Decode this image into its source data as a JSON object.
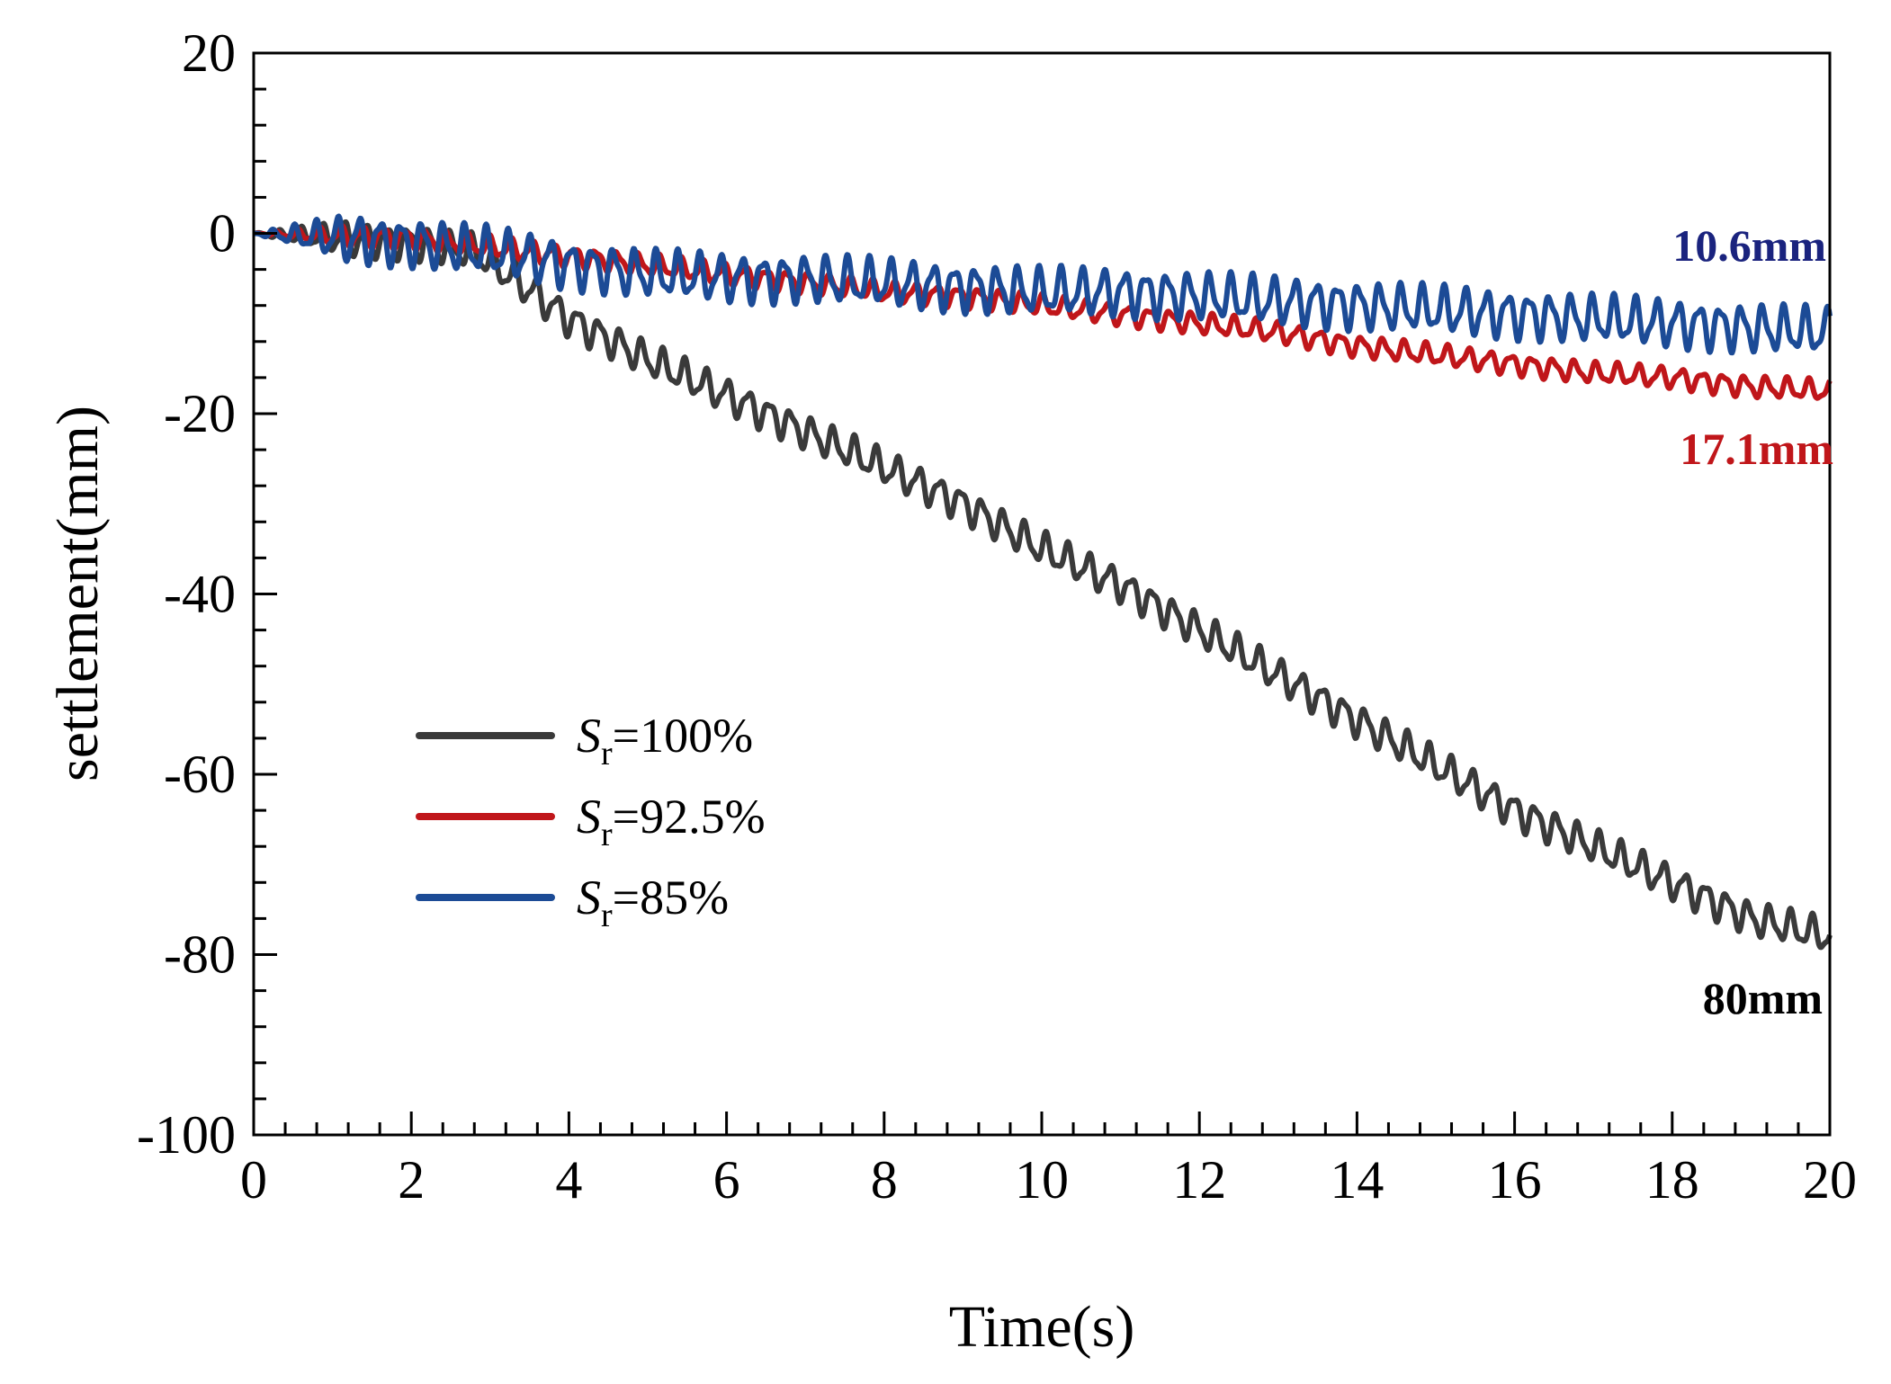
{
  "chart_data": {
    "type": "line",
    "xlabel": "Time(s)",
    "ylabel": "settlement(mm)",
    "xlim": [
      0,
      20
    ],
    "ylim": [
      -100,
      20
    ],
    "xticks": [
      0,
      2,
      4,
      6,
      8,
      10,
      12,
      14,
      16,
      18,
      20
    ],
    "yticks": [
      20,
      0,
      -20,
      -40,
      -60,
      -80,
      -100
    ],
    "xtick_labels": [
      "0",
      "2",
      "4",
      "6",
      "8",
      "10",
      "12",
      "14",
      "16",
      "18",
      "20"
    ],
    "ytick_labels": [
      "20",
      "0",
      "-20",
      "-40",
      "-60",
      "-80",
      "-100"
    ],
    "grid": false,
    "legend_position": "lower-left",
    "series": [
      {
        "name": "Sr=100%",
        "legend": {
          "symbol": "S",
          "subscript": "r",
          "rest": "=100%"
        },
        "color": "#3a3a3a",
        "oscillation_amplitude": 1.6,
        "oscillation_period": 0.27,
        "points": [
          [
            0,
            0
          ],
          [
            1,
            -0.5
          ],
          [
            2,
            -1
          ],
          [
            2.8,
            -2
          ],
          [
            3.3,
            -5
          ],
          [
            4,
            -9.5
          ],
          [
            5,
            -14
          ],
          [
            6,
            -18
          ],
          [
            7,
            -22
          ],
          [
            8,
            -26
          ],
          [
            9,
            -30
          ],
          [
            10,
            -35
          ],
          [
            11,
            -39
          ],
          [
            12,
            -44
          ],
          [
            13,
            -49
          ],
          [
            14,
            -54
          ],
          [
            15,
            -59
          ],
          [
            16,
            -64
          ],
          [
            17,
            -68
          ],
          [
            18,
            -72
          ],
          [
            19,
            -76
          ],
          [
            20,
            -78
          ]
        ]
      },
      {
        "name": "Sr=92.5%",
        "legend": {
          "symbol": "S",
          "subscript": "r",
          "rest": "=92.5%"
        },
        "color": "#c0161a",
        "oscillation_amplitude": 1.0,
        "oscillation_period": 0.27,
        "points": [
          [
            0,
            0
          ],
          [
            2,
            -0.5
          ],
          [
            3,
            -1.5
          ],
          [
            4,
            -2.5
          ],
          [
            5,
            -3.5
          ],
          [
            6,
            -4.5
          ],
          [
            7,
            -5.5
          ],
          [
            8,
            -6.5
          ],
          [
            9,
            -7
          ],
          [
            10,
            -8
          ],
          [
            11,
            -9
          ],
          [
            12,
            -10
          ],
          [
            13,
            -11
          ],
          [
            14,
            -12.5
          ],
          [
            15,
            -13.5
          ],
          [
            16,
            -14.5
          ],
          [
            17,
            -15.5
          ],
          [
            18,
            -16
          ],
          [
            19,
            -17
          ],
          [
            20,
            -17.5
          ]
        ]
      },
      {
        "name": "Sr=85%",
        "legend": {
          "symbol": "S",
          "subscript": "r",
          "rest": "=85%"
        },
        "color": "#1c4b96",
        "oscillation_amplitude": 2.2,
        "oscillation_period": 0.27,
        "points": [
          [
            0,
            0
          ],
          [
            1,
            -0.5
          ],
          [
            2,
            -1
          ],
          [
            3,
            -2
          ],
          [
            4,
            -3.5
          ],
          [
            5,
            -4.5
          ],
          [
            6,
            -5
          ],
          [
            7,
            -5
          ],
          [
            8,
            -5.5
          ],
          [
            9,
            -6
          ],
          [
            10,
            -6.5
          ],
          [
            11,
            -6.5
          ],
          [
            12,
            -7
          ],
          [
            13,
            -7.5
          ],
          [
            14,
            -8
          ],
          [
            15,
            -8.5
          ],
          [
            16,
            -9
          ],
          [
            17,
            -9.5
          ],
          [
            18,
            -10
          ],
          [
            19,
            -10.5
          ],
          [
            20,
            -11
          ]
        ]
      }
    ],
    "annotations": [
      {
        "text": "10.6mm",
        "color": "#1a237e"
      },
      {
        "text": "17.1mm",
        "color": "#c0161a"
      },
      {
        "text": "80mm",
        "color": "#000000"
      }
    ]
  }
}
